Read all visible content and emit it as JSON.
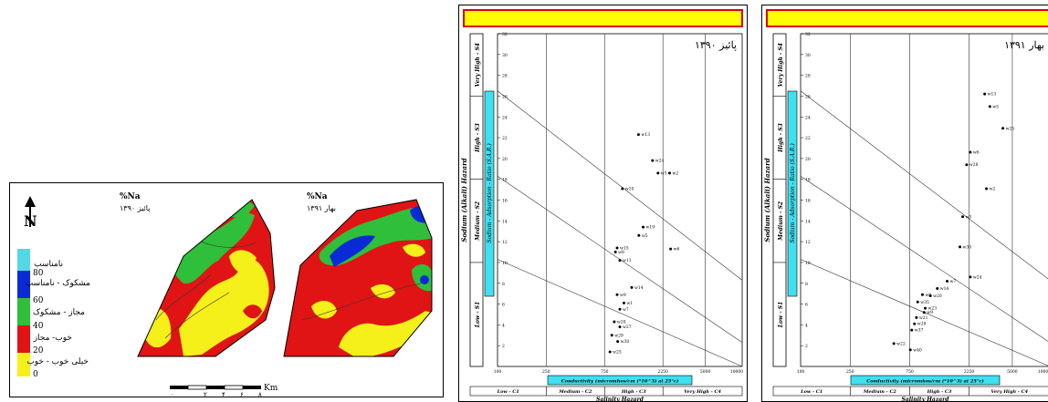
{
  "map_figure": {
    "north_arrow_symbol": "N",
    "map_left": {
      "title": "%Na",
      "subtitle": "پائیز ۱۳۹۰"
    },
    "map_right": {
      "title": "%Na",
      "subtitle": "بهار ۱۳۹۱"
    },
    "legend": {
      "items": [
        {
          "label": "نامناسب",
          "color": "#55d7e6"
        },
        {
          "label": "مشکوک - نامناسب",
          "color": "#0a2ad8"
        },
        {
          "label": "مجاز - مشکوک",
          "color": "#2fbf3a"
        },
        {
          "label": "خوب- مجاز",
          "color": "#e01414"
        },
        {
          "label": "خیلی خوب - خوب",
          "color": "#f5ef1a"
        }
      ],
      "thresholds": [
        "80",
        "60",
        "40",
        "20",
        "0"
      ]
    },
    "scale_bar": {
      "ticks": [
        "۰",
        "۲",
        "۴",
        "۶",
        "۸"
      ],
      "unit": "Km"
    }
  },
  "chart_data": [
    {
      "type": "scatter",
      "title": "پائیز ۱۳۹۰",
      "xlabel": "Conductivity (micromhos/cm (*10^3) at 25°c)",
      "ylabel": "Sodium - Adsorption - Ratio (S.A.R.)",
      "outer_ylabel": "Sodium (Alkali) Hazard",
      "outer_xlabel": "Salinity Hazard",
      "xscale": "log",
      "xlim": [
        100,
        10000
      ],
      "ylim": [
        0,
        32
      ],
      "xticks": [
        "100",
        "250",
        "750",
        "2250",
        "5000",
        "10000"
      ],
      "yticks": [
        "2",
        "4",
        "6",
        "8",
        "10",
        "12",
        "14",
        "16",
        "18",
        "20",
        "22",
        "24",
        "26",
        "28",
        "30",
        "32"
      ],
      "sodium_classes": [
        "Low - S1",
        "Medium - S2",
        "High - S3",
        "Very High - S4"
      ],
      "salinity_classes": [
        "Low - C1",
        "Medium - C2",
        "High - C3",
        "Very High - C4"
      ],
      "points": [
        {
          "label": "w13",
          "x": 1420,
          "y": 22.3
        },
        {
          "label": "w24",
          "x": 1850,
          "y": 19.8
        },
        {
          "label": "w3",
          "x": 2050,
          "y": 18.6
        },
        {
          "label": "w2",
          "x": 2550,
          "y": 18.6
        },
        {
          "label": "w10",
          "x": 1050,
          "y": 17.1
        },
        {
          "label": "w19",
          "x": 1550,
          "y": 13.4
        },
        {
          "label": "w5",
          "x": 1430,
          "y": 12.6
        },
        {
          "label": "w6",
          "x": 2600,
          "y": 11.3
        },
        {
          "label": "w15",
          "x": 950,
          "y": 11.4
        },
        {
          "label": "w8",
          "x": 920,
          "y": 11.0
        },
        {
          "label": "w11",
          "x": 1000,
          "y": 10.2
        },
        {
          "label": "w14",
          "x": 1250,
          "y": 7.6
        },
        {
          "label": "w9",
          "x": 950,
          "y": 6.9
        },
        {
          "label": "w1",
          "x": 1080,
          "y": 6.1
        },
        {
          "label": "w7",
          "x": 1000,
          "y": 5.5
        },
        {
          "label": "w20",
          "x": 900,
          "y": 4.3
        },
        {
          "label": "w27",
          "x": 1000,
          "y": 3.8
        },
        {
          "label": "w29",
          "x": 860,
          "y": 3.0
        },
        {
          "label": "w30",
          "x": 960,
          "y": 2.4
        },
        {
          "label": "w25",
          "x": 830,
          "y": 1.4
        }
      ]
    },
    {
      "type": "scatter",
      "title": "بهار ۱۳۹۱",
      "xlabel": "Conductivity (micromhos/cm (*10^3) at 25°c)",
      "ylabel": "Sodium - Adsorption - Ratio (S.A.R.)",
      "outer_ylabel": "Sodium (Alkali) Hazard",
      "outer_xlabel": "Salinity Hazard",
      "xscale": "log",
      "xlim": [
        100,
        10000
      ],
      "ylim": [
        0,
        32
      ],
      "xticks": [
        "100",
        "250",
        "750",
        "2250",
        "5000",
        "10000"
      ],
      "yticks": [
        "2",
        "4",
        "6",
        "8",
        "10",
        "12",
        "14",
        "16",
        "18",
        "20",
        "22",
        "24",
        "26",
        "28",
        "30",
        "32"
      ],
      "sodium_classes": [
        "Low - S1",
        "Medium - S2",
        "High - S3",
        "Very High - S4"
      ],
      "salinity_classes": [
        "Low - C1",
        "Medium - C2",
        "High - C3",
        "Very High - C4"
      ],
      "points": [
        {
          "label": "w13",
          "x": 3000,
          "y": 26.2
        },
        {
          "label": "w5",
          "x": 3300,
          "y": 25.0
        },
        {
          "label": "w25",
          "x": 4200,
          "y": 22.9
        },
        {
          "label": "w6",
          "x": 2300,
          "y": 20.6
        },
        {
          "label": "w28",
          "x": 2150,
          "y": 19.4
        },
        {
          "label": "w2",
          "x": 3100,
          "y": 17.1
        },
        {
          "label": "w3",
          "x": 2000,
          "y": 14.4
        },
        {
          "label": "w30",
          "x": 1900,
          "y": 11.5
        },
        {
          "label": "w24",
          "x": 2300,
          "y": 8.6
        },
        {
          "label": "w7",
          "x": 1500,
          "y": 8.2
        },
        {
          "label": "w14",
          "x": 1250,
          "y": 7.5
        },
        {
          "label": "w8",
          "x": 950,
          "y": 6.9
        },
        {
          "label": "w20",
          "x": 1100,
          "y": 6.8
        },
        {
          "label": "w35",
          "x": 870,
          "y": 6.2
        },
        {
          "label": "w23",
          "x": 1000,
          "y": 5.6
        },
        {
          "label": "w9",
          "x": 980,
          "y": 5.2
        },
        {
          "label": "w21",
          "x": 850,
          "y": 4.7
        },
        {
          "label": "w28",
          "x": 820,
          "y": 4.1
        },
        {
          "label": "w37",
          "x": 780,
          "y": 3.5
        },
        {
          "label": "w22",
          "x": 560,
          "y": 2.2
        },
        {
          "label": "w40",
          "x": 760,
          "y": 1.6
        }
      ]
    }
  ]
}
